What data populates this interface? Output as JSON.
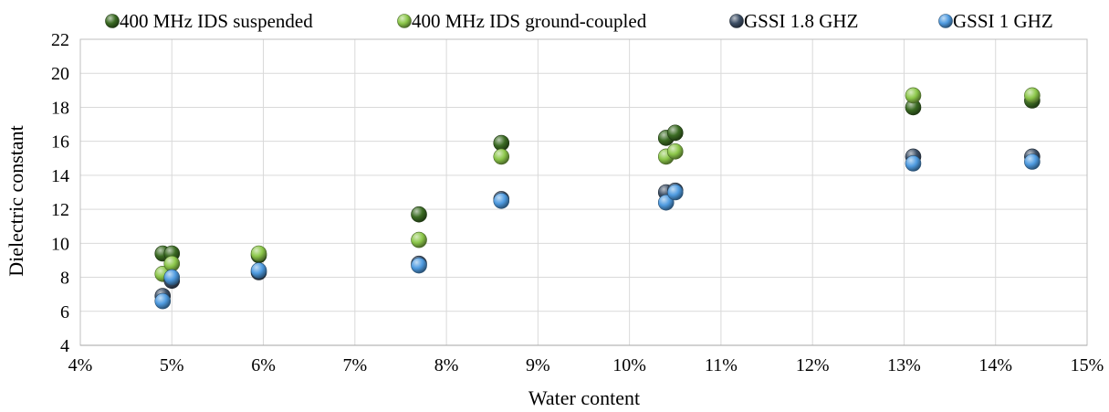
{
  "chart_data": {
    "type": "scatter",
    "xlabel": "Water content",
    "ylabel": "Dielectric constant",
    "xlim": [
      0.04,
      0.15
    ],
    "ylim": [
      4,
      22
    ],
    "x_ticks": [
      "4%",
      "5%",
      "6%",
      "7%",
      "8%",
      "9%",
      "10%",
      "11%",
      "12%",
      "13%",
      "14%",
      "15%"
    ],
    "y_ticks": [
      "4",
      "6",
      "8",
      "10",
      "12",
      "14",
      "16",
      "18",
      "20",
      "22"
    ],
    "grid": true,
    "legend_position": "top",
    "series": [
      {
        "name": "400 MHz IDS suspended",
        "color": "#3b6b23",
        "points": [
          [
            0.049,
            9.4
          ],
          [
            0.05,
            9.4
          ],
          [
            0.0595,
            9.3
          ],
          [
            0.077,
            11.7
          ],
          [
            0.086,
            15.9
          ],
          [
            0.104,
            16.2
          ],
          [
            0.105,
            16.5
          ],
          [
            0.131,
            18.0
          ],
          [
            0.144,
            18.4
          ]
        ]
      },
      {
        "name": "400 MHz IDS ground-coupled",
        "color": "#8cc74a",
        "points": [
          [
            0.049,
            8.2
          ],
          [
            0.05,
            8.8
          ],
          [
            0.0595,
            9.4
          ],
          [
            0.077,
            10.2
          ],
          [
            0.086,
            15.1
          ],
          [
            0.104,
            15.1
          ],
          [
            0.105,
            15.4
          ],
          [
            0.131,
            18.7
          ],
          [
            0.144,
            18.7
          ]
        ]
      },
      {
        "name": "GSSI 1.8 GHZ",
        "color": "#3d4f66",
        "points": [
          [
            0.049,
            6.9
          ],
          [
            0.05,
            7.8
          ],
          [
            0.0595,
            8.3
          ],
          [
            0.077,
            8.8
          ],
          [
            0.086,
            12.6
          ],
          [
            0.104,
            13.0
          ],
          [
            0.105,
            13.1
          ],
          [
            0.131,
            15.1
          ],
          [
            0.144,
            15.1
          ]
        ]
      },
      {
        "name": "GSSI 1 GHZ",
        "color": "#4f9be0",
        "points": [
          [
            0.049,
            6.6
          ],
          [
            0.05,
            8.0
          ],
          [
            0.0595,
            8.4
          ],
          [
            0.077,
            8.7
          ],
          [
            0.086,
            12.5
          ],
          [
            0.104,
            12.4
          ],
          [
            0.105,
            13.0
          ],
          [
            0.131,
            14.7
          ],
          [
            0.144,
            14.8
          ]
        ]
      }
    ]
  }
}
